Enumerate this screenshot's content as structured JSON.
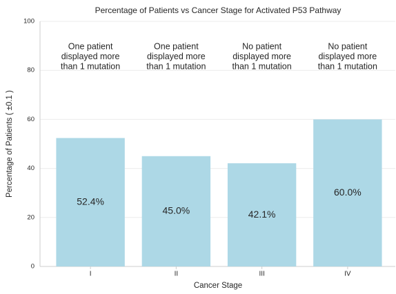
{
  "chart_data": {
    "type": "bar",
    "title": "Percentage of Patients vs Cancer Stage for Activated P53 Pathway",
    "x_label": "Cancer Stage",
    "y_label": "Percentage of Patients ( ±0.1 )",
    "categories": [
      "I",
      "II",
      "III",
      "IV"
    ],
    "values": [
      52.4,
      45.0,
      42.1,
      60.0
    ],
    "value_labels": [
      "52.4%",
      "45.0%",
      "42.1%",
      "60.0%"
    ],
    "annotations": [
      [
        "One patient",
        "displayed more",
        "than 1 mutation"
      ],
      [
        "One patient",
        "displayed more",
        "than 1 mutation"
      ],
      [
        "No patient",
        "displayed more",
        "than 1 mutation"
      ],
      [
        "No patient",
        "displayed more",
        "than 1 mutation"
      ]
    ],
    "color": "#add8e6",
    "ylim": [
      0,
      100
    ],
    "yticks": [
      0,
      20,
      40,
      60,
      80,
      100
    ],
    "grid": true
  }
}
